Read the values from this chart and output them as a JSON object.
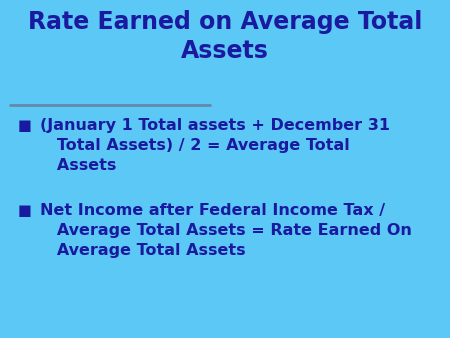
{
  "title_line1": "Rate Earned on Average Total",
  "title_line2": "Assets",
  "background_color": "#5BC8F5",
  "title_color": "#1A1AA0",
  "text_color": "#1A1AA0",
  "divider_color": "#6688AA",
  "bullet_color": "#1A1AA0",
  "bullet1_line1": "(January 1 Total assets + December 31",
  "bullet1_line2": "Total Assets) / 2 = Average Total",
  "bullet1_line3": "Assets",
  "bullet2_line1": "Net Income after Federal Income Tax /",
  "bullet2_line2": "Average Total Assets = Rate Earned On",
  "bullet2_line3": "Average Total Assets",
  "title_fontsize": 17,
  "bullet_fontsize": 11.5,
  "figsize": [
    4.5,
    3.38
  ],
  "dpi": 100
}
